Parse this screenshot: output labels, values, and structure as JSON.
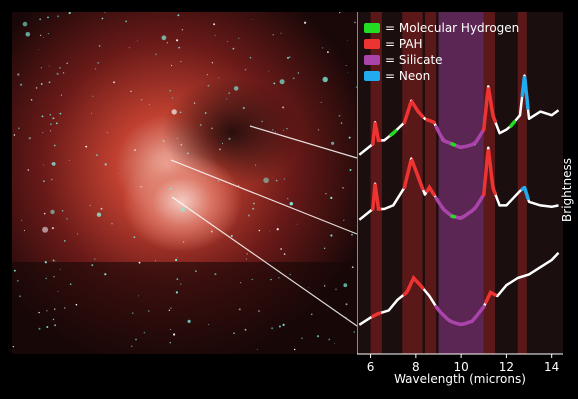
{
  "chart_data": {
    "type": "line",
    "xlabel": "Wavelength (microns)",
    "ylabel": "Brightness",
    "xlim": [
      5.4,
      14.5
    ],
    "xticks": [
      "6",
      "8",
      "10",
      "12",
      "14"
    ],
    "xtick_values": [
      6,
      8,
      10,
      12,
      14
    ],
    "legend": [
      {
        "label": "= Molecular Hydrogen",
        "color": "#22dd22"
      },
      {
        "label": "= PAH",
        "color": "#ee3333"
      },
      {
        "label": "= Silicate",
        "color": "#aa44aa"
      },
      {
        "label": "= Neon",
        "color": "#22aaee"
      }
    ],
    "bands": [
      {
        "type": "PAH",
        "from": 6.0,
        "to": 6.5
      },
      {
        "type": "PAH",
        "from": 7.4,
        "to": 8.3
      },
      {
        "type": "PAH",
        "from": 8.4,
        "to": 8.9
      },
      {
        "type": "Silicate",
        "from": 9.0,
        "to": 11.0
      },
      {
        "type": "PAH",
        "from": 11.0,
        "to": 11.5
      },
      {
        "type": "PAH",
        "from": 12.5,
        "to": 12.9
      }
    ],
    "series": [
      {
        "points": [
          [
            5.5,
            0.1
          ],
          [
            5.9,
            0.2
          ],
          [
            6.1,
            0.25
          ],
          [
            6.2,
            0.55
          ],
          [
            6.35,
            0.3
          ],
          [
            6.6,
            0.3
          ],
          [
            7.0,
            0.4
          ],
          [
            7.5,
            0.55
          ],
          [
            7.8,
            0.85
          ],
          [
            8.1,
            0.7
          ],
          [
            8.4,
            0.6
          ],
          [
            8.8,
            0.55
          ],
          [
            9.2,
            0.3
          ],
          [
            9.6,
            0.25
          ],
          [
            10.0,
            0.2
          ],
          [
            10.6,
            0.25
          ],
          [
            11.0,
            0.45
          ],
          [
            11.2,
            1.05
          ],
          [
            11.4,
            0.65
          ],
          [
            11.7,
            0.4
          ],
          [
            12.0,
            0.45
          ],
          [
            12.2,
            0.5
          ],
          [
            12.6,
            0.65
          ],
          [
            12.8,
            1.2
          ],
          [
            13.0,
            0.6
          ],
          [
            13.5,
            0.7
          ],
          [
            14.0,
            0.65
          ],
          [
            14.3,
            0.72
          ]
        ],
        "overlays": [
          {
            "type": "PAH",
            "from": 6.1,
            "to": 6.4
          },
          {
            "type": "Molecular Hydrogen",
            "from": 6.9,
            "to": 7.1
          },
          {
            "type": "PAH",
            "from": 7.5,
            "to": 8.3
          },
          {
            "type": "PAH",
            "from": 8.5,
            "to": 8.8
          },
          {
            "type": "Silicate",
            "from": 8.9,
            "to": 11.0
          },
          {
            "type": "Molecular Hydrogen",
            "from": 9.6,
            "to": 9.7
          },
          {
            "type": "PAH",
            "from": 11.0,
            "to": 11.5
          },
          {
            "type": "Molecular Hydrogen",
            "from": 12.2,
            "to": 12.35
          },
          {
            "type": "Neon",
            "from": 12.7,
            "to": 12.95
          }
        ]
      },
      {
        "points": [
          [
            5.5,
            0.1
          ],
          [
            5.9,
            0.2
          ],
          [
            6.1,
            0.25
          ],
          [
            6.2,
            0.6
          ],
          [
            6.35,
            0.25
          ],
          [
            6.6,
            0.25
          ],
          [
            7.0,
            0.3
          ],
          [
            7.5,
            0.55
          ],
          [
            7.8,
            0.95
          ],
          [
            8.1,
            0.7
          ],
          [
            8.4,
            0.45
          ],
          [
            8.6,
            0.55
          ],
          [
            8.8,
            0.45
          ],
          [
            9.2,
            0.25
          ],
          [
            9.6,
            0.15
          ],
          [
            10.0,
            0.12
          ],
          [
            10.6,
            0.25
          ],
          [
            11.0,
            0.45
          ],
          [
            11.2,
            1.1
          ],
          [
            11.4,
            0.55
          ],
          [
            11.7,
            0.3
          ],
          [
            12.0,
            0.3
          ],
          [
            12.3,
            0.4
          ],
          [
            12.6,
            0.5
          ],
          [
            12.8,
            0.55
          ],
          [
            13.0,
            0.35
          ],
          [
            13.5,
            0.3
          ],
          [
            14.0,
            0.28
          ],
          [
            14.3,
            0.3
          ]
        ],
        "overlays": [
          {
            "type": "PAH",
            "from": 6.1,
            "to": 6.4
          },
          {
            "type": "PAH",
            "from": 7.5,
            "to": 8.3
          },
          {
            "type": "PAH",
            "from": 8.5,
            "to": 8.8
          },
          {
            "type": "Silicate",
            "from": 8.9,
            "to": 11.0
          },
          {
            "type": "Molecular Hydrogen",
            "from": 9.6,
            "to": 9.7
          },
          {
            "type": "PAH",
            "from": 11.0,
            "to": 11.5
          },
          {
            "type": "Neon",
            "from": 12.7,
            "to": 12.95
          }
        ]
      },
      {
        "points": [
          [
            5.5,
            0.1
          ],
          [
            6.0,
            0.2
          ],
          [
            6.3,
            0.25
          ],
          [
            6.8,
            0.3
          ],
          [
            7.2,
            0.45
          ],
          [
            7.6,
            0.55
          ],
          [
            7.9,
            0.75
          ],
          [
            8.2,
            0.65
          ],
          [
            8.6,
            0.5
          ],
          [
            9.0,
            0.3
          ],
          [
            9.5,
            0.15
          ],
          [
            10.0,
            0.1
          ],
          [
            10.5,
            0.15
          ],
          [
            11.0,
            0.35
          ],
          [
            11.3,
            0.55
          ],
          [
            11.6,
            0.5
          ],
          [
            12.0,
            0.65
          ],
          [
            12.5,
            0.75
          ],
          [
            13.0,
            0.8
          ],
          [
            13.5,
            0.9
          ],
          [
            14.0,
            1.0
          ],
          [
            14.3,
            1.1
          ]
        ],
        "overlays": [
          {
            "type": "PAH",
            "from": 6.1,
            "to": 6.4
          },
          {
            "type": "PAH",
            "from": 7.5,
            "to": 8.3
          },
          {
            "type": "Silicate",
            "from": 8.9,
            "to": 11.0
          },
          {
            "type": "PAH",
            "from": 11.1,
            "to": 11.5
          }
        ]
      }
    ]
  }
}
